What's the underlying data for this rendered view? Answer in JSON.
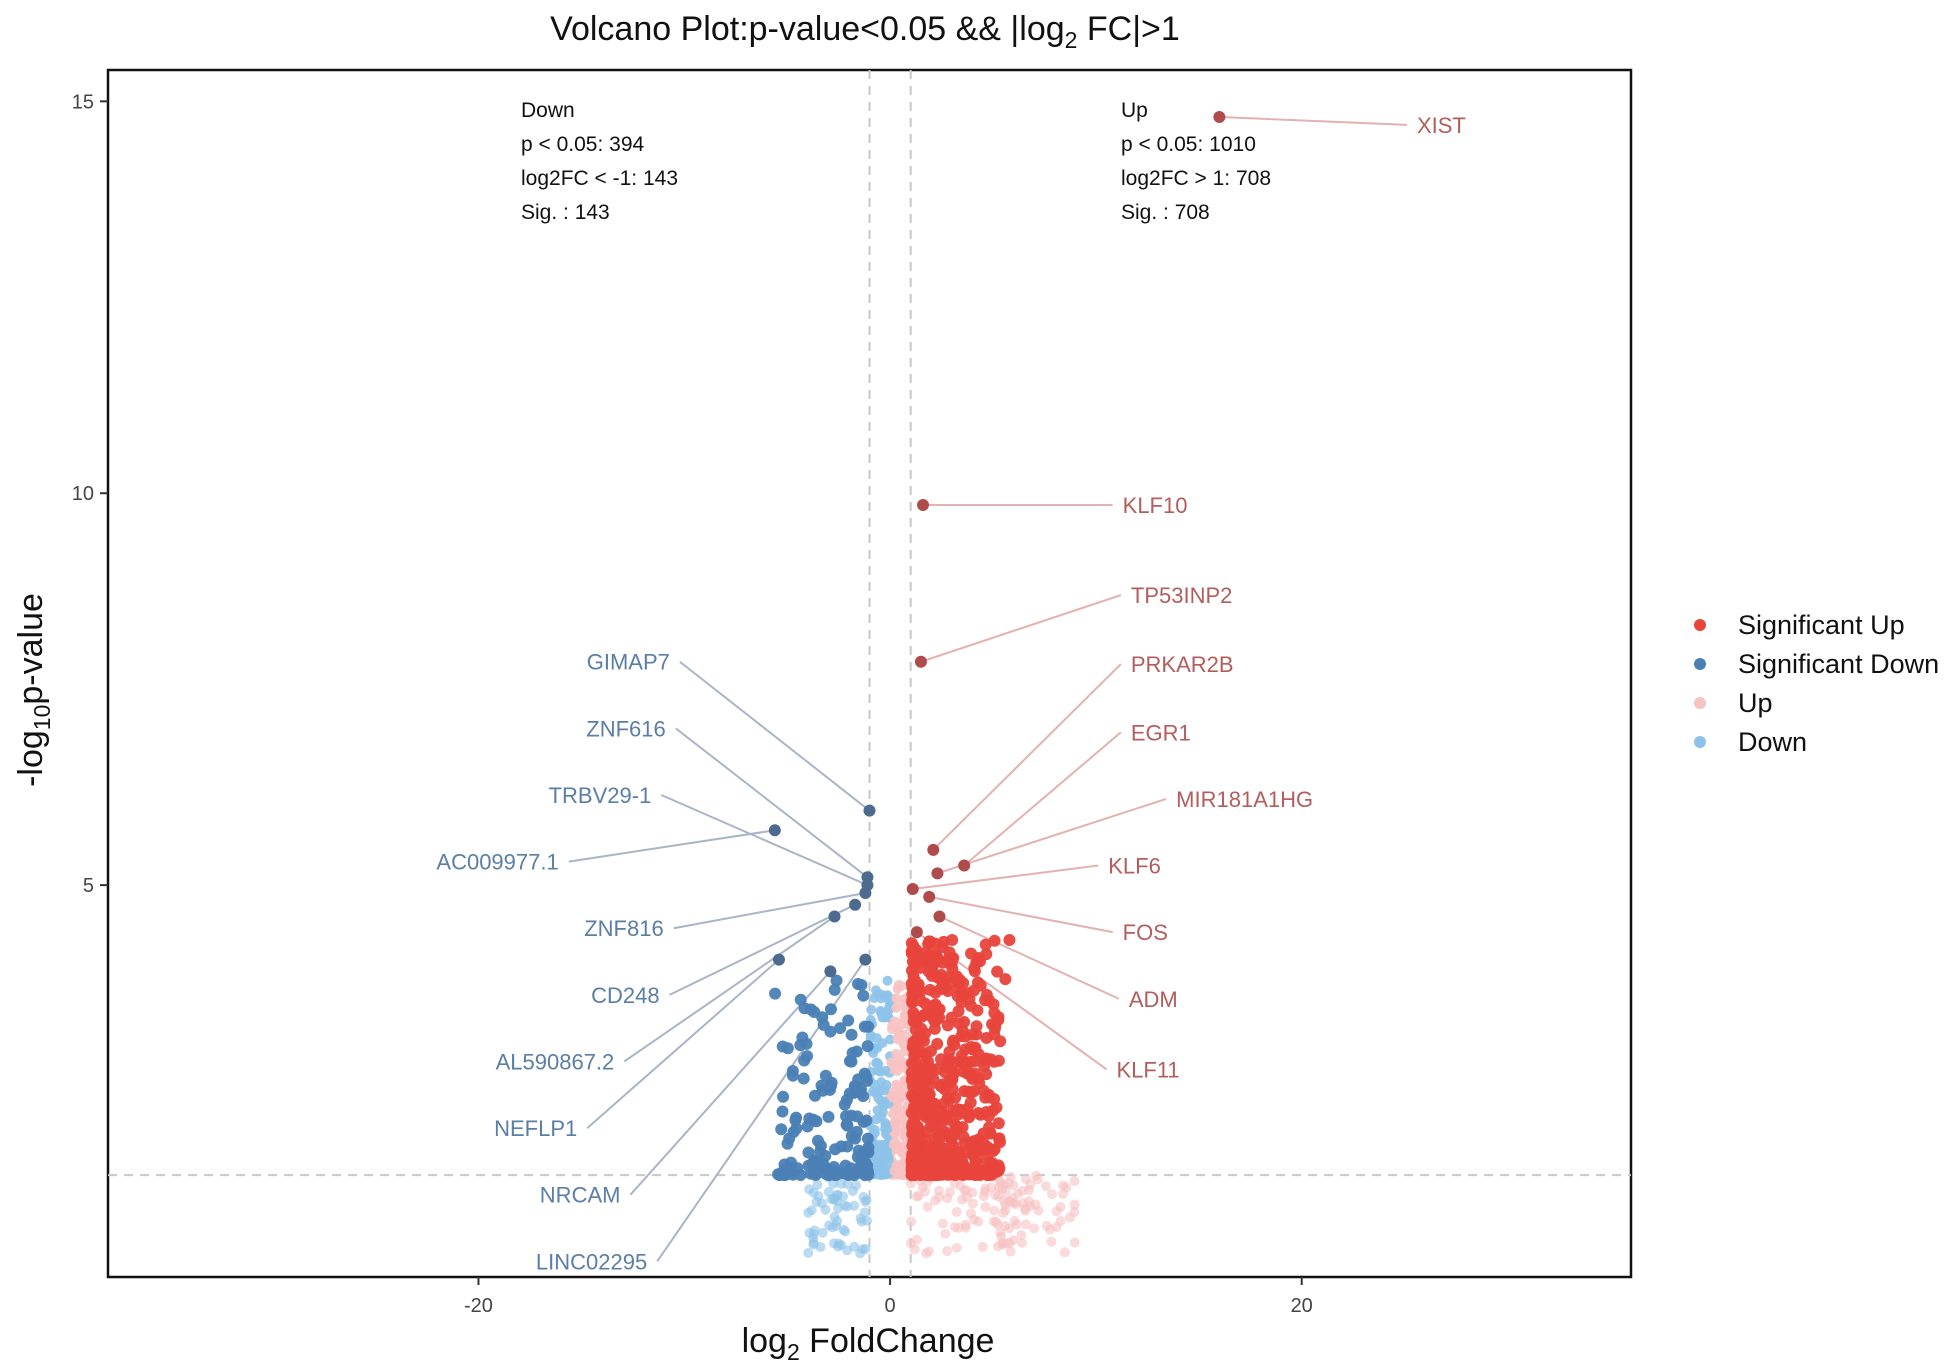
{
  "chart_data": {
    "type": "scatter",
    "title": {
      "pre": "Volcano Plot:p-value<0.05 && |log",
      "sub": "2",
      "post": " FC|>1"
    },
    "xlabel": {
      "pre": "log",
      "sub": "2",
      "post": " FoldChange"
    },
    "ylabel": {
      "pre": "-log",
      "sub": "10",
      "post": "p-value"
    },
    "xlim": [
      -38,
      36
    ],
    "ylim": [
      0,
      15.4
    ],
    "x_ticks": [
      -20,
      0,
      20
    ],
    "y_ticks": [
      5,
      10,
      15
    ],
    "thresholds": {
      "log2fc": [
        -1,
        1
      ],
      "neg_log10_p": 1.3
    },
    "colors": {
      "sig_up": "#e8453c",
      "sig_down": "#4a7fb5",
      "up": "#f7c2c2",
      "down": "#8dc3ea",
      "label_up": "#b35d5d",
      "label_down": "#5a7ea6",
      "line_up": "#e3b1b1",
      "line_down": "#a9b4c6",
      "labeled_up": "#b04b4b",
      "labeled_down": "#4d6a8f"
    },
    "annotations": {
      "down": [
        "Down",
        "p < 0.05: 394",
        "log2FC < -1: 143",
        "Sig. : 143"
      ],
      "up": [
        "Up",
        "p < 0.05: 1010",
        "log2FC > 1: 708",
        "Sig. : 708"
      ]
    },
    "legend": {
      "position": "right",
      "items": [
        {
          "key": "sig_up",
          "label": "Significant Up"
        },
        {
          "key": "sig_down",
          "label": "Significant Down"
        },
        {
          "key": "up",
          "label": "Up"
        },
        {
          "key": "down",
          "label": "Down"
        }
      ]
    },
    "labeled_genes": [
      {
        "gene": "XIST",
        "x": 16.0,
        "y": 14.8,
        "lx": 25.6,
        "ly": 14.7,
        "side": "up"
      },
      {
        "gene": "KLF10",
        "x": 1.6,
        "y": 9.85,
        "lx": 11.3,
        "ly": 9.85,
        "side": "up"
      },
      {
        "gene": "TP53INP2",
        "x": 1.5,
        "y": 7.85,
        "lx": 11.7,
        "ly": 8.7,
        "side": "up"
      },
      {
        "gene": "PRKAR2B",
        "x": 2.1,
        "y": 5.45,
        "lx": 11.7,
        "ly": 7.82,
        "side": "up"
      },
      {
        "gene": "EGR1",
        "x": 3.6,
        "y": 5.25,
        "lx": 11.7,
        "ly": 6.95,
        "side": "up"
      },
      {
        "gene": "MIR181A1HG",
        "x": 2.3,
        "y": 5.15,
        "lx": 13.9,
        "ly": 6.1,
        "side": "up"
      },
      {
        "gene": "KLF6",
        "x": 1.1,
        "y": 4.95,
        "lx": 10.6,
        "ly": 5.25,
        "side": "up"
      },
      {
        "gene": "FOS",
        "x": 1.9,
        "y": 4.85,
        "lx": 11.3,
        "ly": 4.4,
        "side": "up"
      },
      {
        "gene": "ADM",
        "x": 2.4,
        "y": 4.6,
        "lx": 11.6,
        "ly": 3.55,
        "side": "up"
      },
      {
        "gene": "KLF11",
        "x": 1.3,
        "y": 4.4,
        "lx": 11.0,
        "ly": 2.65,
        "side": "up"
      },
      {
        "gene": "GIMAP7",
        "x": -1.0,
        "y": 5.95,
        "lx": -10.7,
        "ly": 7.85,
        "side": "down"
      },
      {
        "gene": "ZNF616",
        "x": -1.1,
        "y": 5.1,
        "lx": -10.9,
        "ly": 7.0,
        "side": "down"
      },
      {
        "gene": "TRBV29-1",
        "x": -1.1,
        "y": 5.0,
        "lx": -11.6,
        "ly": 6.15,
        "side": "down"
      },
      {
        "gene": "AC009977.1",
        "x": -5.6,
        "y": 5.7,
        "lx": -16.1,
        "ly": 5.3,
        "side": "down"
      },
      {
        "gene": "ZNF816",
        "x": -1.2,
        "y": 4.9,
        "lx": -11.0,
        "ly": 4.45,
        "side": "down"
      },
      {
        "gene": "CD248",
        "x": -1.7,
        "y": 4.75,
        "lx": -11.2,
        "ly": 3.6,
        "side": "down"
      },
      {
        "gene": "AL590867.2",
        "x": -2.7,
        "y": 4.6,
        "lx": -13.4,
        "ly": 2.75,
        "side": "down"
      },
      {
        "gene": "NEFLP1",
        "x": -5.4,
        "y": 4.05,
        "lx": -15.2,
        "ly": 1.9,
        "side": "down"
      },
      {
        "gene": "NRCAM",
        "x": -2.9,
        "y": 3.9,
        "lx": -13.1,
        "ly": 1.05,
        "side": "down"
      },
      {
        "gene": "LINC02295",
        "x": -1.2,
        "y": 4.05,
        "lx": -11.8,
        "ly": 0.2,
        "side": "down"
      }
    ]
  }
}
